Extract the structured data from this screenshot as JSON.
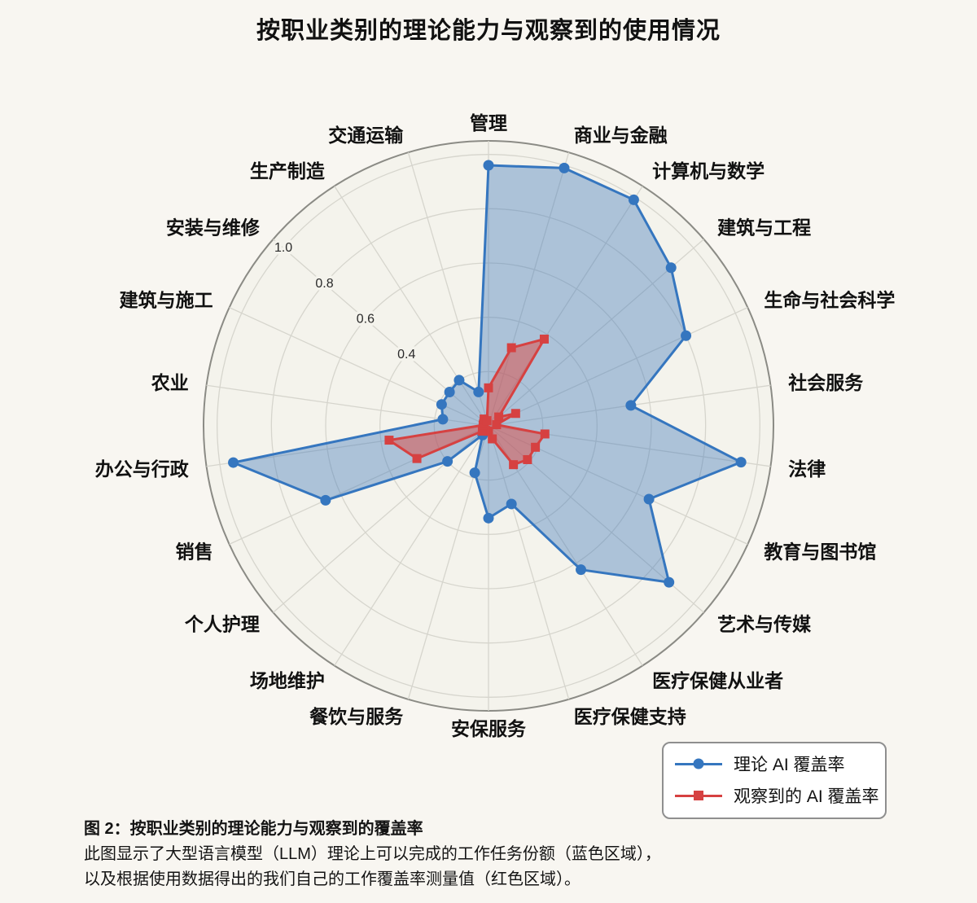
{
  "title": "按职业类别的理论能力与观察到的使用情况",
  "chart_data": {
    "type": "radar",
    "direction": "clockwise",
    "start_angle_deg": 90,
    "grid": true,
    "r_max": 1.05,
    "rings": [
      0.2,
      0.4,
      0.6,
      0.8,
      1.0
    ],
    "r_tick_labels": [
      "0.4",
      "0.6",
      "0.8",
      "1.0"
    ],
    "r_tick_values": [
      0.4,
      0.6,
      0.8,
      1.0
    ],
    "r_tick_angle_deg": 139.09,
    "categories": [
      "管理",
      "商业与金融",
      "计算机与数学",
      "建筑与工程",
      "生命与社会科学",
      "社会服务",
      "法律",
      "教育与图书馆",
      "艺术与传媒",
      "医疗保健从业者",
      "医疗保健支持",
      "安保服务",
      "餐饮与服务",
      "场地维护",
      "个人护理",
      "销售",
      "办公与行政",
      "农业",
      "建筑与施工",
      "安装与维修",
      "生产制造",
      "交通运输"
    ],
    "series": [
      {
        "name": "理论 AI 覆盖率",
        "marker": "circle",
        "color": "#3576bf",
        "fill": "rgba(72,126,188,0.42)",
        "values": [
          0.96,
          0.99,
          0.99,
          0.89,
          0.8,
          0.53,
          0.94,
          0.65,
          0.88,
          0.63,
          0.3,
          0.34,
          0.18,
          0.04,
          0.2,
          0.66,
          0.95,
          0.17,
          0.19,
          0.19,
          0.2,
          0.13
        ]
      },
      {
        "name": "观察到的 AI 覆盖率",
        "marker": "square",
        "color": "#d64141",
        "fill": "rgba(221,78,72,0.52)",
        "values": [
          0.14,
          0.3,
          0.38,
          0.05,
          0.11,
          0.03,
          0.21,
          0.19,
          0.19,
          0.17,
          0.05,
          0.02,
          0.02,
          0.02,
          0.03,
          0.29,
          0.37,
          0.02,
          0.02,
          0.02,
          0.03,
          0.02
        ]
      }
    ],
    "legend_position": "bottom-right"
  },
  "legend": {
    "items": [
      {
        "label": "理论 AI 覆盖率",
        "marker": "circle",
        "color": "#3576bf"
      },
      {
        "label": "观察到的 AI 覆盖率",
        "marker": "square",
        "color": "#d64141"
      }
    ]
  },
  "caption": {
    "line1": "图 2：按职业类别的理论能力与观察到的覆盖率",
    "line2": "此图显示了大型语言模型（LLM）理论上可以完成的工作任务份额（蓝色区域），",
    "line3": "以及根据使用数据得出的我们自己的工作覆盖率测量值（红色区域）。"
  },
  "colors": {
    "background": "#f8f6f1",
    "plot_fill": "#f4f3ec",
    "grid": "#d6d5cd",
    "outer_ring": "#8b8b85",
    "text": "#111111",
    "theoretical_blue": "#3576bf",
    "observed_red": "#d64141"
  }
}
